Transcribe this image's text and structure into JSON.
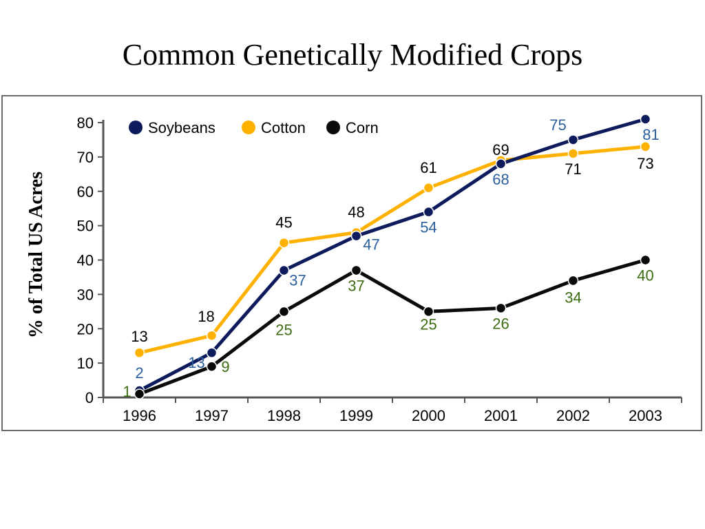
{
  "title": "Common Genetically Modified Crops",
  "chart_data": {
    "type": "line",
    "title": "",
    "xlabel": "",
    "ylabel": "% of Total US Acres",
    "ylim": [
      0,
      80
    ],
    "yticks": [
      0,
      10,
      20,
      30,
      40,
      50,
      60,
      70,
      80
    ],
    "categories": [
      "1996",
      "1997",
      "1998",
      "1999",
      "2000",
      "2001",
      "2002",
      "2003"
    ],
    "legend_position": "top-left",
    "grid": false,
    "series": [
      {
        "name": "Soybeans",
        "color": "#0d1a5c",
        "label_color": "#2b5f9e",
        "values": [
          2,
          13,
          37,
          47,
          54,
          68,
          75,
          81
        ],
        "labels": [
          "2",
          "13",
          "37",
          "47",
          "54",
          "68",
          "75",
          "81"
        ]
      },
      {
        "name": "Cotton",
        "color": "#ffb100",
        "label_color": "#000000",
        "values": [
          13,
          18,
          45,
          48,
          61,
          69,
          71,
          73
        ],
        "labels": [
          "13",
          "18",
          "45",
          "48",
          "61",
          "69",
          "71",
          "73"
        ]
      },
      {
        "name": "Corn",
        "color": "#0a0a0a",
        "label_color": "#3d6b12",
        "values": [
          1,
          9,
          25,
          37,
          25,
          26,
          34,
          40
        ],
        "labels": [
          "1",
          "9",
          "25",
          "37",
          "25",
          "26",
          "34",
          "40"
        ]
      }
    ]
  }
}
